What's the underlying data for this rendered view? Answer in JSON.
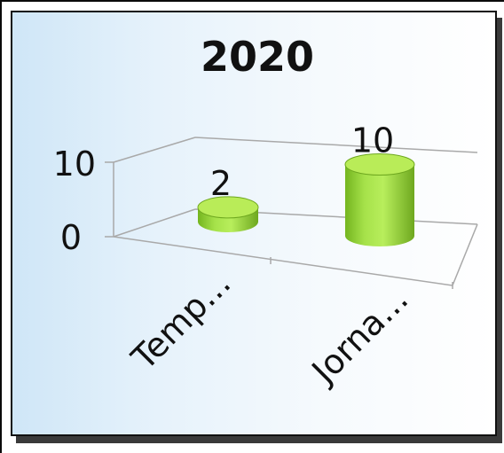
{
  "chart_data": {
    "type": "bar",
    "title": "2020",
    "categories": [
      "Temp...",
      "Jorna..."
    ],
    "values": [
      2,
      10
    ],
    "ylim": [
      0,
      10
    ],
    "yticks": [
      "0",
      "10"
    ],
    "data_labels": [
      "2",
      "10"
    ],
    "grid": true,
    "legend": "none",
    "bar_color": "#9edb3a",
    "bar_top_color": "#b9ec58",
    "bar_shadow_color": "#6ea81f"
  }
}
